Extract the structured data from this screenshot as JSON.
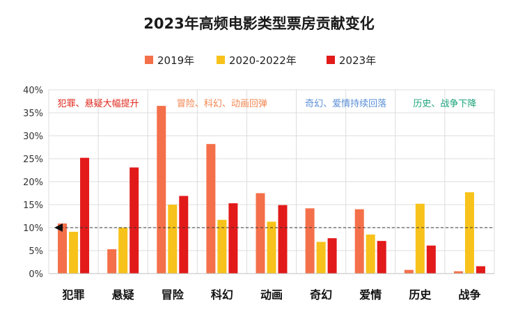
{
  "chart_data": {
    "type": "bar",
    "title": "2023年高频电影类型票房贡献变化",
    "xlabel": "",
    "ylabel": "",
    "ylim": [
      0,
      40
    ],
    "y_ticks": [
      "0%",
      "5%",
      "10%",
      "15%",
      "20%",
      "25%",
      "30%",
      "35%",
      "40%"
    ],
    "y_tick_values": [
      0,
      5,
      10,
      15,
      20,
      25,
      30,
      35,
      40
    ],
    "grid": true,
    "legend_position": "top-center",
    "categories": [
      "犯罪",
      "悬疑",
      "冒险",
      "科幻",
      "动画",
      "奇幻",
      "爱情",
      "历史",
      "战争"
    ],
    "series": [
      {
        "name": "2019年",
        "color": "#f4704a",
        "values": [
          10.9,
          5.3,
          36.5,
          28.2,
          17.5,
          14.2,
          14.0,
          0.8,
          0.5
        ]
      },
      {
        "name": "2020-2022年",
        "color": "#f7c21b",
        "values": [
          9.1,
          10.0,
          15.0,
          11.7,
          11.3,
          6.9,
          8.5,
          15.2,
          17.7
        ]
      },
      {
        "name": "2023年",
        "color": "#e21a1a",
        "values": [
          25.2,
          23.1,
          16.9,
          15.3,
          14.9,
          7.7,
          7.1,
          6.1,
          1.6
        ]
      }
    ],
    "reference_line": {
      "value": 10,
      "style": "dashed",
      "marker": "left-triangle"
    },
    "annotations": [
      {
        "text": "犯罪、悬疑大幅提升",
        "color": "#e0261b",
        "group": [
          0,
          1
        ]
      },
      {
        "text": "冒险、科幻、动画回弹",
        "color": "#f2844e",
        "group": [
          2,
          4
        ]
      },
      {
        "text": "奇幻、爱情持续回落",
        "color": "#5b8fd6",
        "group": [
          5,
          6
        ]
      },
      {
        "text": "历史、战争下降",
        "color": "#1aa37a",
        "group": [
          7,
          8
        ]
      }
    ]
  }
}
